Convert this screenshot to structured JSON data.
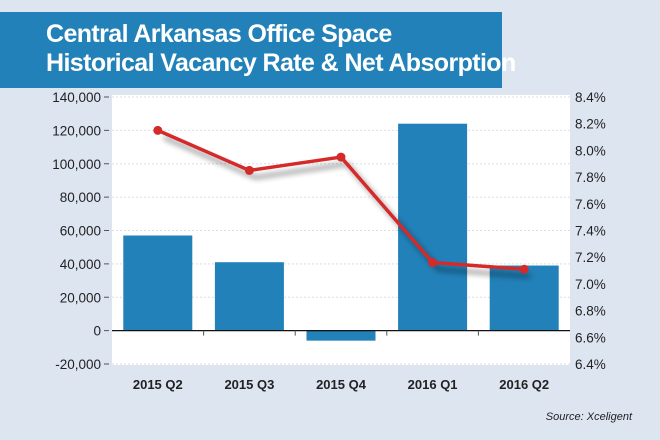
{
  "chart_data": {
    "type": "bar+line",
    "title": [
      "Central Arkansas Office Space",
      "Historical Vacancy Rate & Net Absorption"
    ],
    "categories": [
      "2015 Q2",
      "2015 Q3",
      "2015 Q4",
      "2016 Q1",
      "2016 Q2"
    ],
    "series": [
      {
        "name": "Net Absorption",
        "type": "bar",
        "axis": "left",
        "color": "#2181b8",
        "values": [
          57000,
          41000,
          -6000,
          124000,
          39000
        ]
      },
      {
        "name": "Vacancy Rate",
        "type": "line",
        "axis": "right",
        "color": "#d42a2a",
        "values": [
          8.15,
          7.85,
          7.95,
          7.16,
          7.11
        ]
      }
    ],
    "left_axis": {
      "ylim": [
        -20000,
        140000
      ],
      "ticks": [
        -20000,
        0,
        20000,
        40000,
        60000,
        80000,
        100000,
        120000,
        140000
      ],
      "tick_labels": [
        "-20,000",
        "0",
        "20,000",
        "40,000",
        "60,000",
        "80,000",
        "100,000",
        "120,000",
        "140,000"
      ]
    },
    "right_axis": {
      "ylim": [
        6.4,
        8.4
      ],
      "ticks": [
        6.4,
        6.6,
        6.8,
        7.0,
        7.2,
        7.4,
        7.6,
        7.8,
        8.0,
        8.2,
        8.4
      ],
      "tick_labels": [
        "6.4%",
        "6.6%",
        "6.8%",
        "7.0%",
        "7.2%",
        "7.4%",
        "7.6%",
        "7.8%",
        "8.0%",
        "8.2%",
        "8.4%"
      ]
    },
    "grid": true,
    "source": "Source: Xceligent"
  }
}
